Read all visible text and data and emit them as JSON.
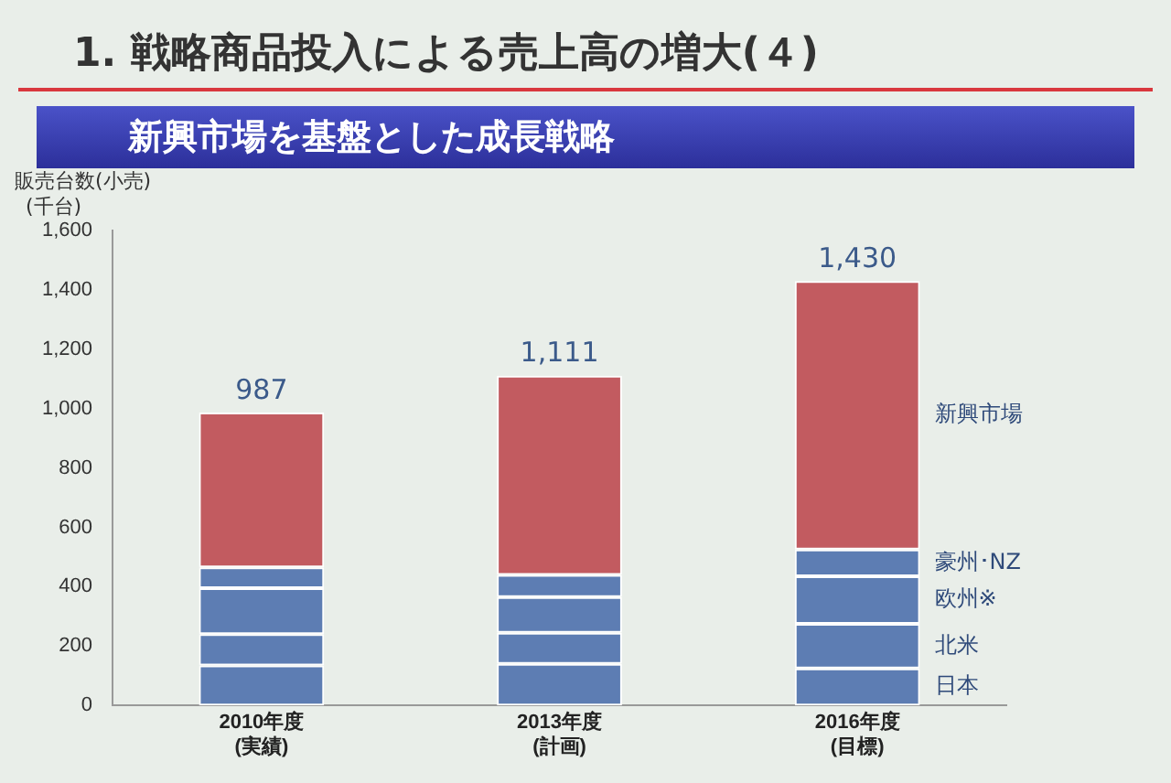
{
  "chart_data": {
    "type": "bar",
    "title": "1. 戦略商品投入による売上高の増大(４)",
    "subtitle": "新興市場を基盤とした成長戦略",
    "ylabel": "販売台数(小売)\n(千台)",
    "categories": [
      "2010年度\n(実績)",
      "2013年度\n(計画)",
      "2016年度\n(目標)"
    ],
    "stacked": true,
    "series": [
      {
        "name": "日本",
        "color": "#5d7db3",
        "values": [
          135,
          140,
          125
        ]
      },
      {
        "name": "北米",
        "color": "#5d7db3",
        "values": [
          105,
          105,
          150
        ]
      },
      {
        "name": "欧州※",
        "color": "#5d7db3",
        "values": [
          155,
          120,
          160
        ]
      },
      {
        "name": "豪州･NZ",
        "color": "#5d7db3",
        "values": [
          70,
          75,
          90
        ]
      },
      {
        "name": "新興市場",
        "color": "#c25b60",
        "values": [
          522,
          671,
          905
        ]
      }
    ],
    "totals": [
      "987",
      "1,111",
      "1,430"
    ],
    "ylim": [
      0,
      1600
    ],
    "yticks": [
      0,
      200,
      400,
      600,
      800,
      {
        "value": 1000,
        "label": "1,000"
      },
      {
        "value": 1200,
        "label": "1,200"
      },
      {
        "value": 1400,
        "label": "1,400"
      },
      {
        "value": 1600,
        "label": "1,600"
      }
    ],
    "grid": false,
    "legend": false
  }
}
